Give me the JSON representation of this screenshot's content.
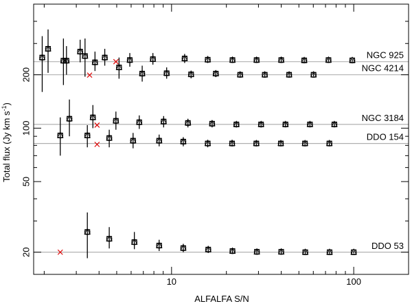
{
  "chart_data": {
    "type": "scatter",
    "title": "",
    "xlabel": "ALFALFA S/N",
    "ylabel": "Total flux (Jy km s",
    "ylabel_superscript": "-1",
    "ylabel_suffix": ")",
    "xscale": "log",
    "yscale": "log",
    "xlim": [
      1.75,
      200
    ],
    "ylim": [
      15,
      500
    ],
    "x_tick_labels": [
      {
        "value": 10,
        "label": "10"
      },
      {
        "value": 100,
        "label": "100"
      }
    ],
    "y_tick_labels": [
      {
        "value": 20,
        "label": "20"
      },
      {
        "value": 50,
        "label": "50"
      },
      {
        "value": 100,
        "label": "100"
      },
      {
        "value": 200,
        "label": "200"
      }
    ],
    "x_minor_ticks": [
      2,
      3,
      4,
      5,
      6,
      7,
      8,
      9,
      20,
      30,
      40,
      50,
      60,
      70,
      80,
      90,
      200
    ],
    "y_minor_ticks": [
      30,
      40,
      60,
      70,
      80,
      90,
      300,
      400,
      500
    ],
    "grid": false,
    "colors": {
      "reference_line": "#b0b0b0",
      "marker": "#000000",
      "cross": "#dd0000"
    },
    "galaxies": [
      {
        "name": "NGC 925",
        "reference_flux": 237,
        "points": [
          {
            "sn": 2.1,
            "flux": 280,
            "low": 205,
            "high": 360
          },
          {
            "sn": 2.65,
            "flux": 240,
            "low": 200,
            "high": 290
          },
          {
            "sn": 3.15,
            "flux": 270,
            "low": 235,
            "high": 315
          },
          {
            "sn": 3.8,
            "flux": 235,
            "low": 210,
            "high": 270
          },
          {
            "sn": 4.3,
            "flux": 250,
            "low": 225,
            "high": 280
          },
          {
            "sn": 5.9,
            "flux": 242,
            "low": 222,
            "high": 265
          },
          {
            "sn": 7.9,
            "flux": 245,
            "low": 228,
            "high": 265
          },
          {
            "sn": 11.8,
            "flux": 247,
            "low": 233,
            "high": 262
          },
          {
            "sn": 15.8,
            "flux": 243,
            "low": 233,
            "high": 255
          },
          {
            "sn": 21.6,
            "flux": 242,
            "low": 234,
            "high": 252
          },
          {
            "sn": 29.3,
            "flux": 242,
            "low": 235,
            "high": 250
          },
          {
            "sn": 40,
            "flux": 242,
            "low": 236,
            "high": 249
          },
          {
            "sn": 53.5,
            "flux": 241,
            "low": 236,
            "high": 247
          },
          {
            "sn": 72.7,
            "flux": 242,
            "low": 237,
            "high": 247
          },
          {
            "sn": 98.2,
            "flux": 241,
            "low": 237,
            "high": 245
          }
        ],
        "outliers": [
          {
            "sn": 4.95,
            "flux": 237
          }
        ]
      },
      {
        "name": "NGC 4214",
        "reference_flux": 200,
        "points": [
          {
            "sn": 1.95,
            "flux": 250,
            "low": 160,
            "high": 330
          },
          {
            "sn": 2.55,
            "flux": 240,
            "low": 175,
            "high": 320
          },
          {
            "sn": 3.35,
            "flux": 255,
            "low": 195,
            "high": 320
          },
          {
            "sn": 5.15,
            "flux": 220,
            "low": 190,
            "high": 250
          },
          {
            "sn": 6.9,
            "flux": 203,
            "low": 183,
            "high": 225
          },
          {
            "sn": 9.4,
            "flux": 204,
            "low": 190,
            "high": 220
          },
          {
            "sn": 12.8,
            "flux": 201,
            "low": 191,
            "high": 211
          },
          {
            "sn": 17.5,
            "flux": 203,
            "low": 194,
            "high": 212
          },
          {
            "sn": 23.8,
            "flux": 200,
            "low": 193,
            "high": 208
          },
          {
            "sn": 32.5,
            "flux": 200,
            "low": 194,
            "high": 206
          },
          {
            "sn": 44.2,
            "flux": 200,
            "low": 195,
            "high": 206
          },
          {
            "sn": 60.2,
            "flux": 200,
            "low": 196,
            "high": 205
          }
        ],
        "outliers": [
          {
            "sn": 3.55,
            "flux": 199
          }
        ]
      },
      {
        "name": "NGC 3184",
        "reference_flux": 105,
        "points": [
          {
            "sn": 2.75,
            "flux": 113,
            "low": 90,
            "high": 145
          },
          {
            "sn": 3.7,
            "flux": 115,
            "low": 100,
            "high": 135
          },
          {
            "sn": 4.95,
            "flux": 110,
            "low": 98,
            "high": 124
          },
          {
            "sn": 6.65,
            "flux": 108,
            "low": 99,
            "high": 118
          },
          {
            "sn": 9.05,
            "flux": 109,
            "low": 101,
            "high": 117
          },
          {
            "sn": 12.3,
            "flux": 107,
            "low": 101,
            "high": 113
          },
          {
            "sn": 16.7,
            "flux": 106,
            "low": 101,
            "high": 111
          },
          {
            "sn": 22.7,
            "flux": 105,
            "low": 101,
            "high": 109
          },
          {
            "sn": 31,
            "flux": 105,
            "low": 101,
            "high": 109
          },
          {
            "sn": 42.2,
            "flux": 105,
            "low": 102,
            "high": 108
          },
          {
            "sn": 57.5,
            "flux": 105,
            "low": 102,
            "high": 108
          },
          {
            "sn": 78.3,
            "flux": 105,
            "low": 102,
            "high": 108
          }
        ],
        "outliers": [
          {
            "sn": 3.9,
            "flux": 104
          }
        ]
      },
      {
        "name": "DDO 154",
        "reference_flux": 82,
        "points": [
          {
            "sn": 2.45,
            "flux": 91,
            "low": 70,
            "high": 115
          },
          {
            "sn": 3.45,
            "flux": 91,
            "low": 78,
            "high": 104
          },
          {
            "sn": 4.55,
            "flux": 88,
            "low": 78,
            "high": 98
          },
          {
            "sn": 6.15,
            "flux": 85,
            "low": 77,
            "high": 94
          },
          {
            "sn": 8.55,
            "flux": 85,
            "low": 79,
            "high": 92
          },
          {
            "sn": 11.6,
            "flux": 84,
            "low": 79,
            "high": 89
          },
          {
            "sn": 15.8,
            "flux": 82,
            "low": 78,
            "high": 86
          },
          {
            "sn": 21.5,
            "flux": 82,
            "low": 79,
            "high": 86
          },
          {
            "sn": 29.2,
            "flux": 82,
            "low": 79,
            "high": 85
          },
          {
            "sn": 39.8,
            "flux": 82,
            "low": 80,
            "high": 85
          },
          {
            "sn": 54,
            "flux": 82,
            "low": 80,
            "high": 84
          },
          {
            "sn": 73.5,
            "flux": 82,
            "low": 80,
            "high": 84
          }
        ],
        "outliers": [
          {
            "sn": 3.9,
            "flux": 81
          }
        ]
      },
      {
        "name": "DDO 53",
        "reference_flux": 20,
        "points": [
          {
            "sn": 3.45,
            "flux": 26,
            "low": 18.5,
            "high": 33.5
          },
          {
            "sn": 4.55,
            "flux": 23.8,
            "low": 21,
            "high": 27.7
          },
          {
            "sn": 6.25,
            "flux": 22.8,
            "low": 20.8,
            "high": 26
          },
          {
            "sn": 8.55,
            "flux": 21.8,
            "low": 20.3,
            "high": 23.5
          },
          {
            "sn": 11.6,
            "flux": 21.1,
            "low": 20,
            "high": 22.3
          },
          {
            "sn": 15.9,
            "flux": 20.7,
            "low": 19.8,
            "high": 21.7
          },
          {
            "sn": 21.6,
            "flux": 20.3,
            "low": 19.6,
            "high": 21.1
          },
          {
            "sn": 29.4,
            "flux": 20.1,
            "low": 19.5,
            "high": 20.7
          },
          {
            "sn": 40,
            "flux": 20.1,
            "low": 19.6,
            "high": 20.6
          },
          {
            "sn": 54.2,
            "flux": 20,
            "low": 19.6,
            "high": 20.4
          },
          {
            "sn": 73.7,
            "flux": 20,
            "low": 19.6,
            "high": 20.4
          },
          {
            "sn": 100,
            "flux": 20,
            "low": 19.7,
            "high": 20.3
          }
        ],
        "outliers": [
          {
            "sn": 2.45,
            "flux": 20
          }
        ]
      }
    ]
  }
}
